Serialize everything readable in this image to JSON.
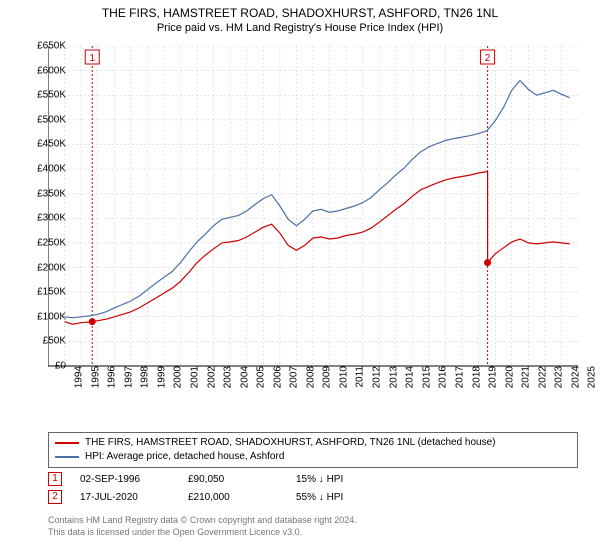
{
  "title": "THE FIRS, HAMSTREET ROAD, SHADOXHURST, ASHFORD, TN26 1NL",
  "subtitle": "Price paid vs. HM Land Registry's House Price Index (HPI)",
  "chart": {
    "type": "line",
    "background_color": "#ffffff",
    "grid_color": "#cccccc",
    "grid_dash": "2,2",
    "axis_color": "#000000",
    "xlim": [
      1994,
      2026
    ],
    "ylim": [
      0,
      650000
    ],
    "ytick_step": 50000,
    "yticks": [
      "£0",
      "£50K",
      "£100K",
      "£150K",
      "£200K",
      "£250K",
      "£300K",
      "£350K",
      "£400K",
      "£450K",
      "£500K",
      "£550K",
      "£600K",
      "£650K"
    ],
    "xticks": [
      1994,
      1995,
      1996,
      1997,
      1998,
      1999,
      2000,
      2001,
      2002,
      2003,
      2004,
      2005,
      2006,
      2007,
      2008,
      2009,
      2010,
      2011,
      2012,
      2013,
      2014,
      2015,
      2016,
      2017,
      2018,
      2019,
      2020,
      2021,
      2022,
      2023,
      2024,
      2025
    ],
    "label_fontsize": 10,
    "title_fontsize": 12,
    "line_width": 1.2,
    "series": [
      {
        "id": "property",
        "label": "THE FIRS, HAMSTREET ROAD, SHADOXHURST, ASHFORD, TN26 1NL (detached house)",
        "color": "#cc0000",
        "points": [
          [
            1995.0,
            90000
          ],
          [
            1995.5,
            85000
          ],
          [
            1996.0,
            88000
          ],
          [
            1996.67,
            90050
          ],
          [
            1997.0,
            92000
          ],
          [
            1997.5,
            95000
          ],
          [
            1998.0,
            100000
          ],
          [
            1998.5,
            105000
          ],
          [
            1999.0,
            110000
          ],
          [
            1999.5,
            118000
          ],
          [
            2000.0,
            128000
          ],
          [
            2000.5,
            138000
          ],
          [
            2001.0,
            148000
          ],
          [
            2001.5,
            158000
          ],
          [
            2002.0,
            172000
          ],
          [
            2002.5,
            190000
          ],
          [
            2003.0,
            210000
          ],
          [
            2003.5,
            225000
          ],
          [
            2004.0,
            238000
          ],
          [
            2004.5,
            250000
          ],
          [
            2005.0,
            252000
          ],
          [
            2005.5,
            255000
          ],
          [
            2006.0,
            262000
          ],
          [
            2006.5,
            272000
          ],
          [
            2007.0,
            282000
          ],
          [
            2007.5,
            288000
          ],
          [
            2008.0,
            270000
          ],
          [
            2008.5,
            245000
          ],
          [
            2009.0,
            235000
          ],
          [
            2009.5,
            245000
          ],
          [
            2010.0,
            260000
          ],
          [
            2010.5,
            262000
          ],
          [
            2011.0,
            258000
          ],
          [
            2011.5,
            260000
          ],
          [
            2012.0,
            265000
          ],
          [
            2012.5,
            268000
          ],
          [
            2013.0,
            272000
          ],
          [
            2013.5,
            280000
          ],
          [
            2014.0,
            292000
          ],
          [
            2014.5,
            305000
          ],
          [
            2015.0,
            318000
          ],
          [
            2015.5,
            330000
          ],
          [
            2016.0,
            345000
          ],
          [
            2016.5,
            358000
          ],
          [
            2017.0,
            365000
          ],
          [
            2017.5,
            372000
          ],
          [
            2018.0,
            378000
          ],
          [
            2018.5,
            382000
          ],
          [
            2019.0,
            385000
          ],
          [
            2019.5,
            388000
          ],
          [
            2020.0,
            392000
          ],
          [
            2020.54,
            395000
          ]
        ],
        "post_sale_points": [
          [
            2020.54,
            210000
          ],
          [
            2021.0,
            228000
          ],
          [
            2021.5,
            240000
          ],
          [
            2022.0,
            252000
          ],
          [
            2022.5,
            258000
          ],
          [
            2023.0,
            250000
          ],
          [
            2023.5,
            248000
          ],
          [
            2024.0,
            250000
          ],
          [
            2024.5,
            252000
          ],
          [
            2025.0,
            250000
          ],
          [
            2025.5,
            248000
          ]
        ]
      },
      {
        "id": "hpi",
        "label": "HPI: Average price, detached house, Ashford",
        "color": "#4a6fa5",
        "points": [
          [
            1995.0,
            100000
          ],
          [
            1995.5,
            98000
          ],
          [
            1996.0,
            100000
          ],
          [
            1996.5,
            102000
          ],
          [
            1997.0,
            105000
          ],
          [
            1997.5,
            110000
          ],
          [
            1998.0,
            118000
          ],
          [
            1998.5,
            125000
          ],
          [
            1999.0,
            132000
          ],
          [
            1999.5,
            142000
          ],
          [
            2000.0,
            155000
          ],
          [
            2000.5,
            168000
          ],
          [
            2001.0,
            180000
          ],
          [
            2001.5,
            192000
          ],
          [
            2002.0,
            210000
          ],
          [
            2002.5,
            232000
          ],
          [
            2003.0,
            252000
          ],
          [
            2003.5,
            268000
          ],
          [
            2004.0,
            285000
          ],
          [
            2004.5,
            298000
          ],
          [
            2005.0,
            302000
          ],
          [
            2005.5,
            306000
          ],
          [
            2006.0,
            315000
          ],
          [
            2006.5,
            328000
          ],
          [
            2007.0,
            340000
          ],
          [
            2007.5,
            348000
          ],
          [
            2008.0,
            325000
          ],
          [
            2008.5,
            298000
          ],
          [
            2009.0,
            285000
          ],
          [
            2009.5,
            298000
          ],
          [
            2010.0,
            315000
          ],
          [
            2010.5,
            318000
          ],
          [
            2011.0,
            312000
          ],
          [
            2011.5,
            315000
          ],
          [
            2012.0,
            320000
          ],
          [
            2012.5,
            325000
          ],
          [
            2013.0,
            332000
          ],
          [
            2013.5,
            342000
          ],
          [
            2014.0,
            358000
          ],
          [
            2014.5,
            372000
          ],
          [
            2015.0,
            388000
          ],
          [
            2015.5,
            402000
          ],
          [
            2016.0,
            420000
          ],
          [
            2016.5,
            435000
          ],
          [
            2017.0,
            445000
          ],
          [
            2017.5,
            452000
          ],
          [
            2018.0,
            458000
          ],
          [
            2018.5,
            462000
          ],
          [
            2019.0,
            465000
          ],
          [
            2019.5,
            468000
          ],
          [
            2020.0,
            472000
          ],
          [
            2020.5,
            478000
          ],
          [
            2021.0,
            498000
          ],
          [
            2021.5,
            525000
          ],
          [
            2022.0,
            560000
          ],
          [
            2022.5,
            580000
          ],
          [
            2023.0,
            562000
          ],
          [
            2023.5,
            550000
          ],
          [
            2024.0,
            555000
          ],
          [
            2024.5,
            560000
          ],
          [
            2025.0,
            552000
          ],
          [
            2025.5,
            545000
          ]
        ]
      }
    ],
    "markers": [
      {
        "n": "1",
        "x": 1996.67,
        "y": 90050,
        "date": "02-SEP-1996",
        "price": "£90,050",
        "delta": "15% ↓ HPI",
        "vline_color": "#cc0000"
      },
      {
        "n": "2",
        "x": 2020.54,
        "y": 210000,
        "date": "17-JUL-2020",
        "price": "£210,000",
        "delta": "55% ↓ HPI",
        "vline_color": "#cc0000"
      }
    ],
    "marker_badge_border": "#cc0000",
    "marker_dot_fill": "#cc0000"
  },
  "legend_border_color": "#666666",
  "copyright": {
    "line1": "Contains HM Land Registry data © Crown copyright and database right 2024.",
    "line2": "This data is licensed under the Open Government Licence v3.0."
  }
}
